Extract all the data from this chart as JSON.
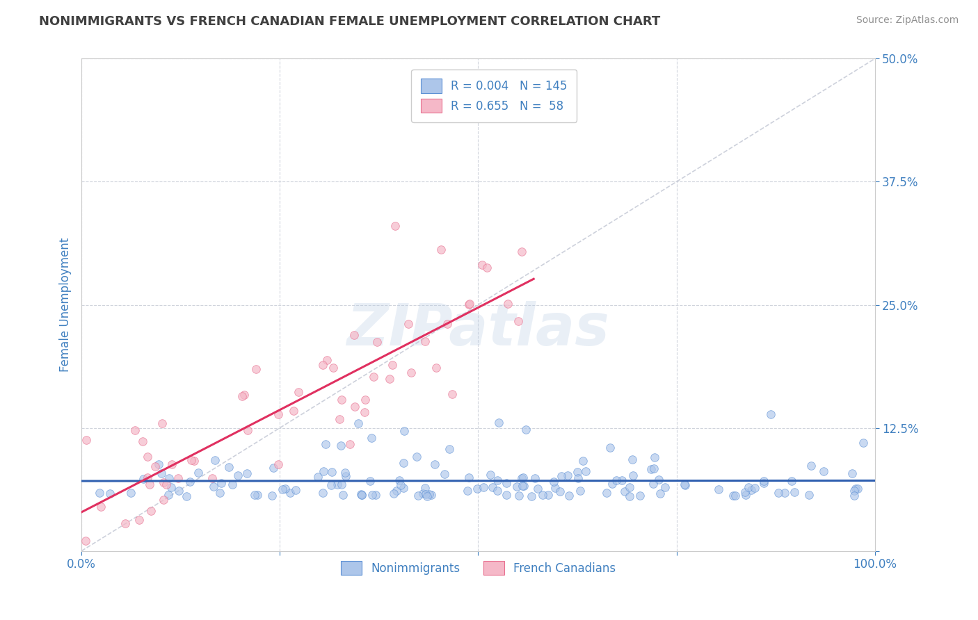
{
  "title": "NONIMMIGRANTS VS FRENCH CANADIAN FEMALE UNEMPLOYMENT CORRELATION CHART",
  "source_text": "Source: ZipAtlas.com",
  "ylabel": "Female Unemployment",
  "watermark": "ZIPatlas",
  "xlim": [
    0,
    100
  ],
  "ylim": [
    0,
    50
  ],
  "yticks": [
    0,
    12.5,
    25.0,
    37.5,
    50.0
  ],
  "xticks": [
    0,
    25,
    50,
    75,
    100
  ],
  "xtick_labels": [
    "0.0%",
    "",
    "",
    "",
    "100.0%"
  ],
  "ytick_labels_right": [
    "",
    "12.5%",
    "25.0%",
    "37.5%",
    "50.0%"
  ],
  "blue_R": 0.004,
  "blue_N": 145,
  "pink_R": 0.655,
  "pink_N": 58,
  "blue_color": "#adc6ea",
  "blue_edge_color": "#5b8fd4",
  "blue_line_color": "#3060b0",
  "pink_color": "#f5b8c8",
  "pink_edge_color": "#e87090",
  "pink_line_color": "#e03060",
  "diag_line_color": "#c8ccd8",
  "title_color": "#404040",
  "axis_label_color": "#4080c0",
  "tick_color": "#4080c0",
  "grid_color": "#d0d4dc",
  "source_color": "#909090",
  "background_color": "#ffffff",
  "legend_blue_label": "Nonimmigrants",
  "legend_pink_label": "French Canadians",
  "blue_scatter_seed": 123,
  "pink_scatter_seed": 456
}
